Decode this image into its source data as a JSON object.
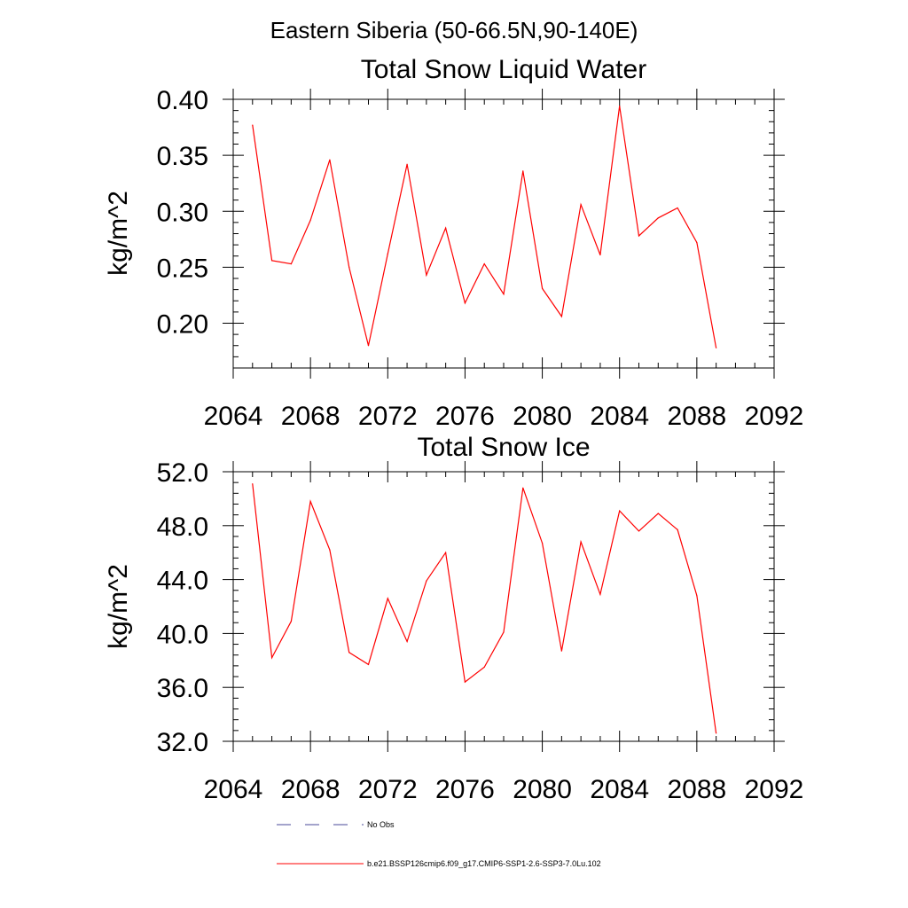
{
  "suptitle": "Eastern Siberia (50-66.5N,90-140E)",
  "colors": {
    "model": "#ff0000",
    "obs": "#4a4a9a",
    "axis": "#000000"
  },
  "chart_data": [
    {
      "type": "line",
      "title": "Total Snow Liquid Water",
      "xlabel": "",
      "ylabel": "kg/m^2",
      "xlim": [
        2064,
        2092
      ],
      "ylim": [
        0.16,
        0.4
      ],
      "xticks": [
        2064,
        2068,
        2072,
        2076,
        2080,
        2084,
        2088,
        2092
      ],
      "xtick_labels": [
        "2064",
        "2068",
        "2072",
        "2076",
        "2080",
        "2084",
        "2088",
        "2092"
      ],
      "yticks": [
        0.2,
        0.25,
        0.3,
        0.35,
        0.4
      ],
      "ytick_labels": [
        "0.20",
        "0.25",
        "0.30",
        "0.35",
        "0.40"
      ],
      "grid": false,
      "x": [
        2065,
        2066,
        2067,
        2068,
        2069,
        2070,
        2071,
        2072,
        2073,
        2074,
        2075,
        2076,
        2077,
        2078,
        2079,
        2080,
        2081,
        2082,
        2083,
        2084,
        2085,
        2086,
        2087,
        2088,
        2089
      ],
      "series": [
        {
          "name": "b.e21.BSSP126cmip6.f09_g17.CMIP6-SSP1-2.6-SSP3-7.0Lu.102",
          "values": [
            0.377,
            0.256,
            0.253,
            0.292,
            0.346,
            0.25,
            0.18,
            0.262,
            0.342,
            0.243,
            0.285,
            0.218,
            0.253,
            0.226,
            0.336,
            0.231,
            0.206,
            0.306,
            0.261,
            0.394,
            0.278,
            0.294,
            0.303,
            0.272,
            0.178
          ]
        }
      ]
    },
    {
      "type": "line",
      "title": "Total Snow Ice",
      "xlabel": "",
      "ylabel": "kg/m^2",
      "xlim": [
        2064,
        2092
      ],
      "ylim": [
        32.0,
        52.0
      ],
      "xticks": [
        2064,
        2068,
        2072,
        2076,
        2080,
        2084,
        2088,
        2092
      ],
      "xtick_labels": [
        "2064",
        "2068",
        "2072",
        "2076",
        "2080",
        "2084",
        "2088",
        "2092"
      ],
      "yticks": [
        32,
        36,
        40,
        44,
        48,
        52
      ],
      "ytick_labels": [
        "32.0",
        "36.0",
        "40.0",
        "44.0",
        "48.0",
        "52.0"
      ],
      "grid": false,
      "x": [
        2065,
        2066,
        2067,
        2068,
        2069,
        2070,
        2071,
        2072,
        2073,
        2074,
        2075,
        2076,
        2077,
        2078,
        2079,
        2080,
        2081,
        2082,
        2083,
        2084,
        2085,
        2086,
        2087,
        2088,
        2089
      ],
      "series": [
        {
          "name": "b.e21.BSSP126cmip6.f09_g17.CMIP6-SSP1-2.6-SSP3-7.0Lu.102",
          "values": [
            51.1,
            38.2,
            40.9,
            49.8,
            46.2,
            38.6,
            37.7,
            42.6,
            39.4,
            43.9,
            46.0,
            36.4,
            37.5,
            40.1,
            50.8,
            46.7,
            38.7,
            46.8,
            42.9,
            49.1,
            47.6,
            48.9,
            47.7,
            42.8,
            32.6
          ]
        }
      ]
    }
  ],
  "legend": {
    "placement": "bottom",
    "items": [
      {
        "label": "No Obs",
        "style": "dashed",
        "color": "#4a4a9a"
      },
      {
        "label": "b.e21.BSSP126cmip6.f09_g17.CMIP6-SSP1-2.6-SSP3-7.0Lu.102",
        "style": "solid",
        "color": "#ff0000"
      }
    ]
  }
}
